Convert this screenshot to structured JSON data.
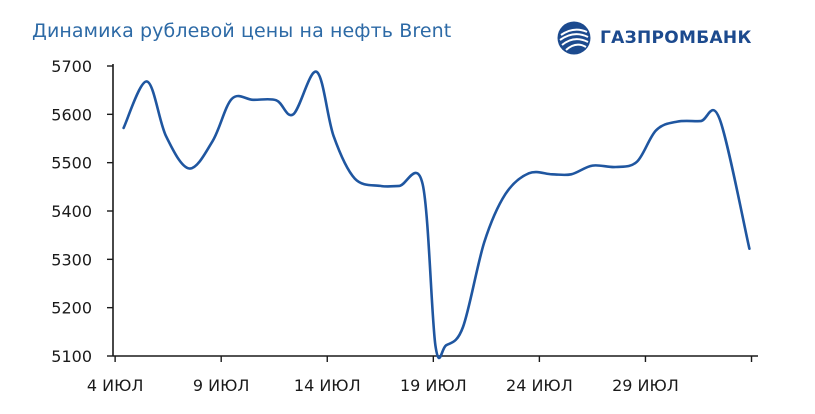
{
  "title": "Динамика рублевой цены на нефть Brent",
  "logo": {
    "text": "ГАЗПРОМБАНК",
    "icon": "gazprombank-sphere-icon",
    "color": "#1c4a8e"
  },
  "chart_data": {
    "type": "line",
    "title": "Динамика рублевой цены на нефть Brent",
    "xlabel": "",
    "ylabel": "",
    "ylim": [
      5100,
      5700
    ],
    "yticks": [
      5100,
      5200,
      5300,
      5400,
      5500,
      5600,
      5700
    ],
    "xlim": [
      3.9,
      34.4
    ],
    "xticks": [
      4,
      9,
      14,
      19,
      24,
      29,
      34
    ],
    "xtick_labels": [
      "4 ИЮЛ",
      "9 ИЮЛ",
      "14 ИЮЛ",
      "19 ИЮЛ",
      "24 ИЮЛ",
      "29 ИЮЛ",
      ""
    ],
    "grid": false,
    "line_color": "#1f56a0",
    "series": [
      {
        "x": [
          4.4,
          5.5,
          6.4,
          7.5,
          8.6,
          9.5,
          10.5,
          11.6,
          12.4,
          13.5,
          14.3,
          15.3,
          16.5,
          17.4,
          18.5,
          19.1,
          19.6,
          20.4,
          21.4,
          22.4,
          23.5,
          24.6,
          25.5,
          26.5,
          27.6,
          28.6,
          29.5,
          30.5,
          31.6,
          32.5,
          33.9
        ],
        "values": [
          5572,
          5668,
          5555,
          5488,
          5545,
          5632,
          5630,
          5629,
          5600,
          5688,
          5555,
          5467,
          5452,
          5452,
          5455,
          5122,
          5122,
          5160,
          5335,
          5435,
          5478,
          5476,
          5476,
          5494,
          5491,
          5502,
          5567,
          5585,
          5586,
          5590,
          5322
        ]
      }
    ]
  }
}
